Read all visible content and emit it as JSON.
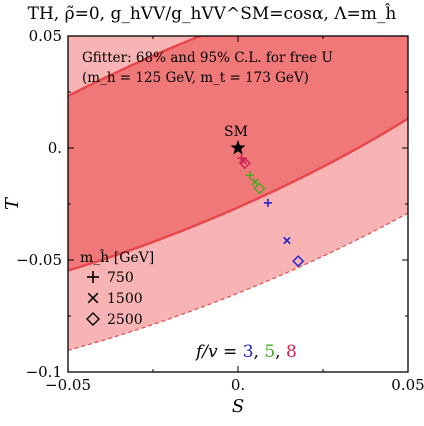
{
  "title": "TH,  ρ̃=0,  g_hVV/g_hVV^SM=cosα,  Λ=m_ĥ",
  "chart_data": {
    "type": "scatter",
    "title": "TH,  ρ̃=0,  g_hVV/g_hVV^SM=cosα,  Λ=m_ĥ",
    "xlabel": "S",
    "ylabel": "T",
    "xlim": [
      -0.05,
      0.05
    ],
    "ylim": [
      -0.1,
      0.05
    ],
    "x_ticks": [
      "−0.05",
      "0.",
      "0.05"
    ],
    "y_ticks": [
      "0.05",
      "0.",
      "−0.05",
      "−0.1"
    ],
    "annotation_box": {
      "line1": "Gfitter: 68% and 95% C.L. for free U",
      "line2": "(m_h = 125 GeV, m_t = 173 GeV)"
    },
    "sm_point": {
      "label": "SM",
      "x": 0.0,
      "y": 0.0
    },
    "legend": {
      "title": "m_ĥ [GeV]",
      "entries": [
        {
          "marker": "plus",
          "label": "750"
        },
        {
          "marker": "cross",
          "label": "1500"
        },
        {
          "marker": "diamond",
          "label": "2500"
        }
      ]
    },
    "fv_label": {
      "prefix": "f/v = ",
      "values": [
        "3",
        "5",
        "8"
      ]
    },
    "series": [
      {
        "name": "3",
        "color": "#2222cc",
        "points": [
          {
            "marker": "plus",
            "x": 0.0088,
            "y": -0.0245
          },
          {
            "marker": "cross",
            "x": 0.0144,
            "y": -0.0413
          },
          {
            "marker": "diamond",
            "x": 0.0177,
            "y": -0.0505
          }
        ]
      },
      {
        "name": "5",
        "color": "#44aa22",
        "points": [
          {
            "marker": "plus",
            "x": 0.0035,
            "y": -0.0122
          },
          {
            "marker": "cross",
            "x": 0.005,
            "y": -0.0152
          },
          {
            "marker": "diamond",
            "x": 0.0063,
            "y": -0.018
          }
        ]
      },
      {
        "name": "8",
        "color": "#cc2255",
        "points": [
          {
            "marker": "plus",
            "x": 0.001,
            "y": -0.0045
          },
          {
            "marker": "cross",
            "x": 0.0016,
            "y": -0.0058
          },
          {
            "marker": "diamond",
            "x": 0.002,
            "y": -0.0068
          }
        ]
      }
    ],
    "ellipses": {
      "c68": {
        "x": -0.013,
        "y": 0.007,
        "a": 0.12,
        "b": 0.035,
        "angle_deg": 35
      },
      "c95": {
        "x": -0.015,
        "y": 0.003,
        "a": 0.165,
        "b": 0.065,
        "angle_deg": 35
      }
    },
    "colors": {
      "region95": "#f8b4b4",
      "region68": "#f07878",
      "boundary": "#e8484c",
      "frame": "#000000"
    }
  }
}
